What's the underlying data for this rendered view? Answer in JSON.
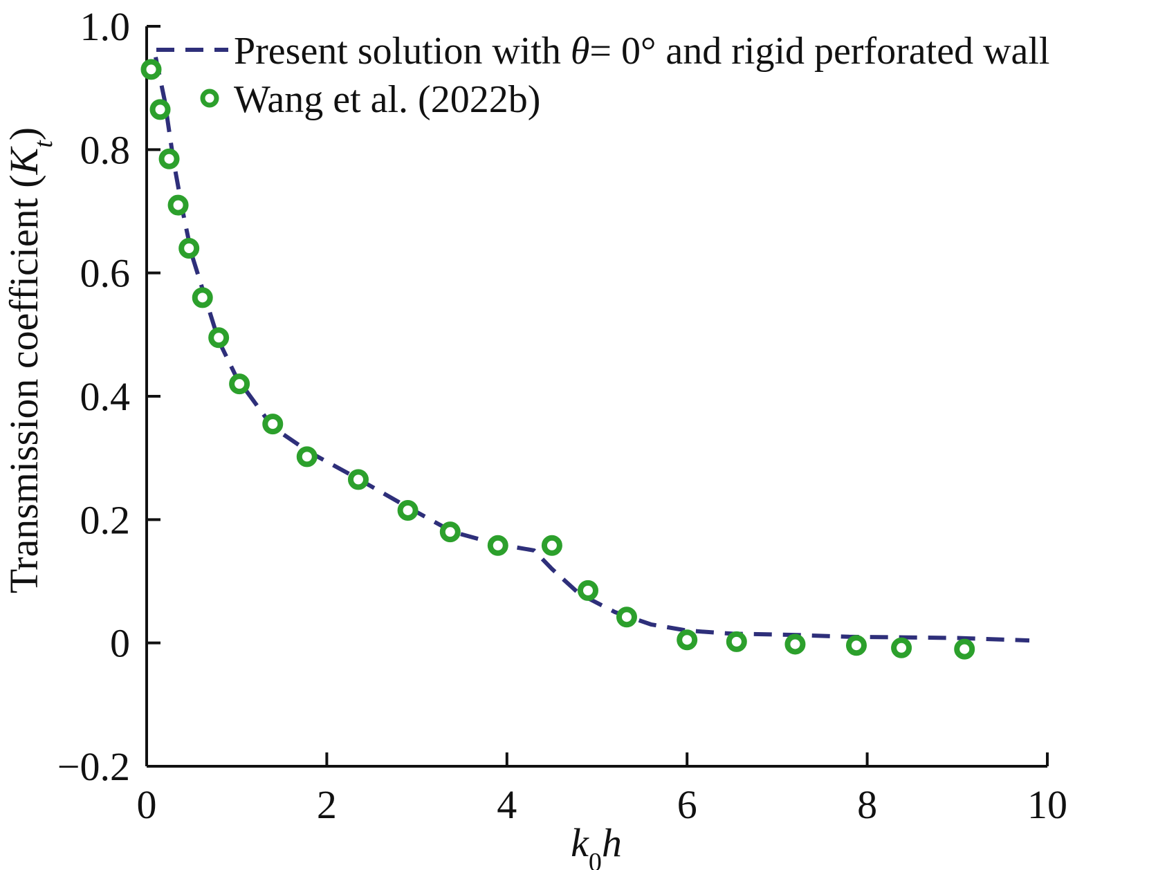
{
  "chart_data": {
    "type": "line",
    "xlabel": "k0h",
    "ylabel": "Transmission coefficient (Kt)",
    "xlim": [
      0,
      10
    ],
    "ylim": [
      -0.2,
      1.0
    ],
    "xticks": [
      "0",
      "2",
      "4",
      "6",
      "8",
      "10"
    ],
    "yticks": [
      "−0.2",
      "0",
      "0.2",
      "0.4",
      "0.6",
      "0.8",
      "1.0"
    ],
    "grid": false,
    "legend": "top-right",
    "series": [
      {
        "name": "Present solution with θ= 0° and rigid perforated wall",
        "style": "dashed-line",
        "color": "#2e2f7a",
        "x": [
          0.1,
          0.2,
          0.3,
          0.4,
          0.5,
          0.65,
          0.8,
          1.0,
          1.4,
          1.8,
          2.3,
          2.9,
          3.4,
          3.9,
          4.3,
          4.5,
          4.8,
          5.2,
          5.6,
          6.0,
          6.5,
          7.2,
          7.8,
          8.4,
          9.0,
          9.8
        ],
        "y": [
          0.95,
          0.88,
          0.78,
          0.7,
          0.63,
          0.56,
          0.49,
          0.43,
          0.35,
          0.31,
          0.27,
          0.22,
          0.18,
          0.16,
          0.15,
          0.12,
          0.08,
          0.05,
          0.03,
          0.02,
          0.015,
          0.013,
          0.01,
          0.009,
          0.008,
          0.004
        ]
      },
      {
        "name": "Wang et al. (2022b)",
        "style": "open-circle",
        "color": "#2ca02c",
        "x": [
          0.05,
          0.15,
          0.25,
          0.35,
          0.47,
          0.62,
          0.8,
          1.03,
          1.4,
          1.78,
          2.35,
          2.9,
          3.37,
          3.9,
          4.5,
          4.9,
          5.33,
          6.0,
          6.55,
          7.2,
          7.88,
          8.38,
          9.08
        ],
        "y": [
          0.93,
          0.865,
          0.785,
          0.71,
          0.64,
          0.56,
          0.495,
          0.42,
          0.355,
          0.302,
          0.265,
          0.215,
          0.18,
          0.158,
          0.158,
          0.085,
          0.042,
          0.005,
          0.002,
          -0.002,
          -0.004,
          -0.008,
          -0.01
        ]
      }
    ]
  }
}
